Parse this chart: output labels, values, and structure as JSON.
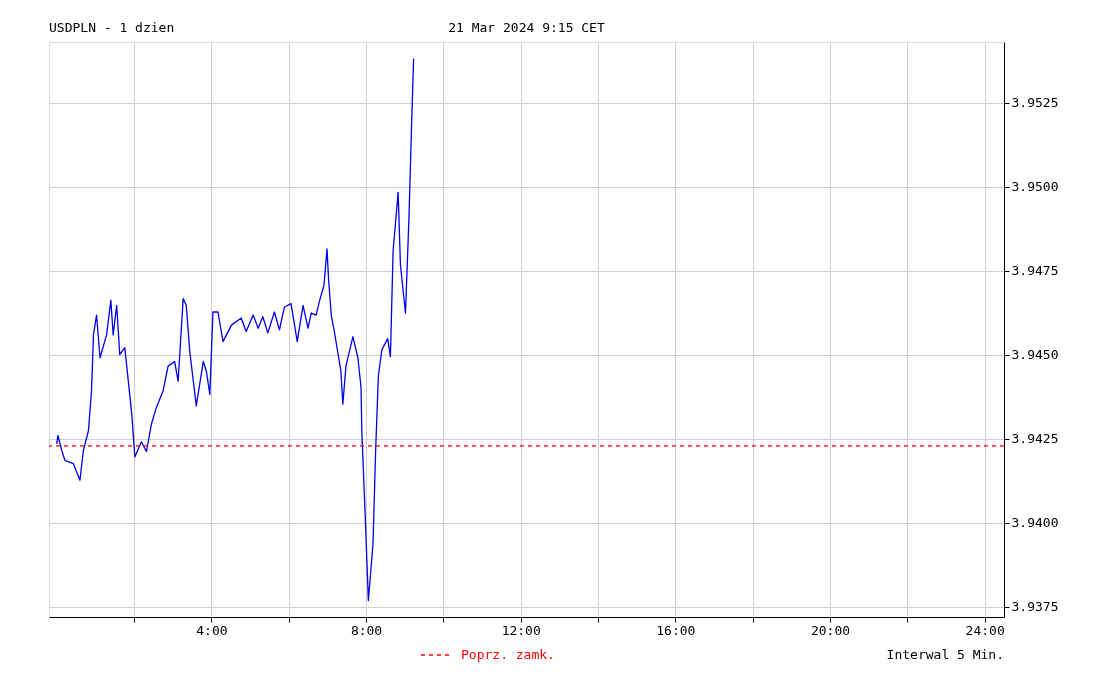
{
  "chart_data": {
    "type": "line",
    "title": "USDPLN - 1 dzien",
    "subtitle": "21 Mar 2024 9:15 CET",
    "annotations": [
      "Interwal 5 Min."
    ],
    "x": [
      0.0,
      0.03,
      0.13,
      0.21,
      0.43,
      0.6,
      0.69,
      0.82,
      0.9,
      0.95,
      1.03,
      1.12,
      1.29,
      1.4,
      1.46,
      1.55,
      1.63,
      1.76,
      1.94,
      2.02,
      2.19,
      2.32,
      2.45,
      2.58,
      2.75,
      2.88,
      3.05,
      3.14,
      3.27,
      3.35,
      3.44,
      3.61,
      3.79,
      3.87,
      3.96,
      4.04,
      4.17,
      4.3,
      4.52,
      4.77,
      4.9,
      5.08,
      5.21,
      5.33,
      5.46,
      5.63,
      5.76,
      5.89,
      6.06,
      6.22,
      6.37,
      6.5,
      6.58,
      6.71,
      6.79,
      6.91,
      6.97,
      6.99,
      7.03,
      7.1,
      7.18,
      7.35,
      7.4,
      7.48,
      7.66,
      7.79,
      7.87,
      7.89,
      7.98,
      8.06,
      8.18,
      8.25,
      8.32,
      8.41,
      8.56,
      8.63,
      8.7,
      8.83,
      8.89,
      9.02,
      9.11,
      9.18,
      9.23
    ],
    "series": [
      {
        "color": "#0000ee",
        "values": [
          3.94235,
          3.9426,
          3.94216,
          3.94186,
          3.94176,
          3.94127,
          3.94216,
          3.94274,
          3.94392,
          3.94559,
          3.94618,
          3.94491,
          3.94559,
          3.94662,
          3.94559,
          3.94647,
          3.945,
          3.94521,
          3.94324,
          3.94196,
          3.94241,
          3.94212,
          3.94294,
          3.94344,
          3.94392,
          3.94466,
          3.9448,
          3.94421,
          3.94667,
          3.94647,
          3.9451,
          3.94348,
          3.9448,
          3.94451,
          3.94382,
          3.94627,
          3.94627,
          3.94539,
          3.94588,
          3.94609,
          3.94569,
          3.94618,
          3.94579,
          3.94613,
          3.94565,
          3.94627,
          3.94574,
          3.94642,
          3.94652,
          3.94539,
          3.94647,
          3.94579,
          3.94624,
          3.94618,
          3.94657,
          3.94706,
          3.94785,
          3.94815,
          3.94726,
          3.94618,
          3.94569,
          3.94451,
          3.94353,
          3.94466,
          3.94554,
          3.94491,
          3.94403,
          3.94276,
          3.94015,
          3.93769,
          3.93938,
          3.94221,
          3.94439,
          3.94515,
          3.94548,
          3.94494,
          3.94809,
          3.94983,
          3.94766,
          3.94624,
          3.94907,
          3.95191,
          3.95381
        ]
      }
    ],
    "xlim": [
      -0.2,
      24.5
    ],
    "xticks": [
      {
        "value": 2,
        "label": null
      },
      {
        "value": 4,
        "label": "4:00"
      },
      {
        "value": 6,
        "label": null
      },
      {
        "value": 8,
        "label": "8:00"
      },
      {
        "value": 10,
        "label": null
      },
      {
        "value": 12,
        "label": "12:00"
      },
      {
        "value": 14,
        "label": null
      },
      {
        "value": 16,
        "label": "16:00"
      },
      {
        "value": 18,
        "label": null
      },
      {
        "value": 20,
        "label": "20:00"
      },
      {
        "value": 22,
        "label": null
      },
      {
        "value": 24,
        "label": "24:00"
      }
    ],
    "ylim": [
      3.9372,
      3.9543
    ],
    "yticks": [
      {
        "value": 3.9375,
        "label": "3.9375"
      },
      {
        "value": 3.94,
        "label": "3.9400"
      },
      {
        "value": 3.9425,
        "label": "3.9425"
      },
      {
        "value": 3.945,
        "label": "3.9450"
      },
      {
        "value": 3.9475,
        "label": "3.9475"
      },
      {
        "value": 3.95,
        "label": "3.9500"
      },
      {
        "value": 3.9525,
        "label": "3.9525"
      }
    ],
    "ref_lines": [
      {
        "axis": "y",
        "value": 3.94229,
        "label": "Poprz. zamk.",
        "color": "#ff0000",
        "line_style": "dashed"
      }
    ],
    "grid": true,
    "marker": "none",
    "line_style": "solid"
  }
}
